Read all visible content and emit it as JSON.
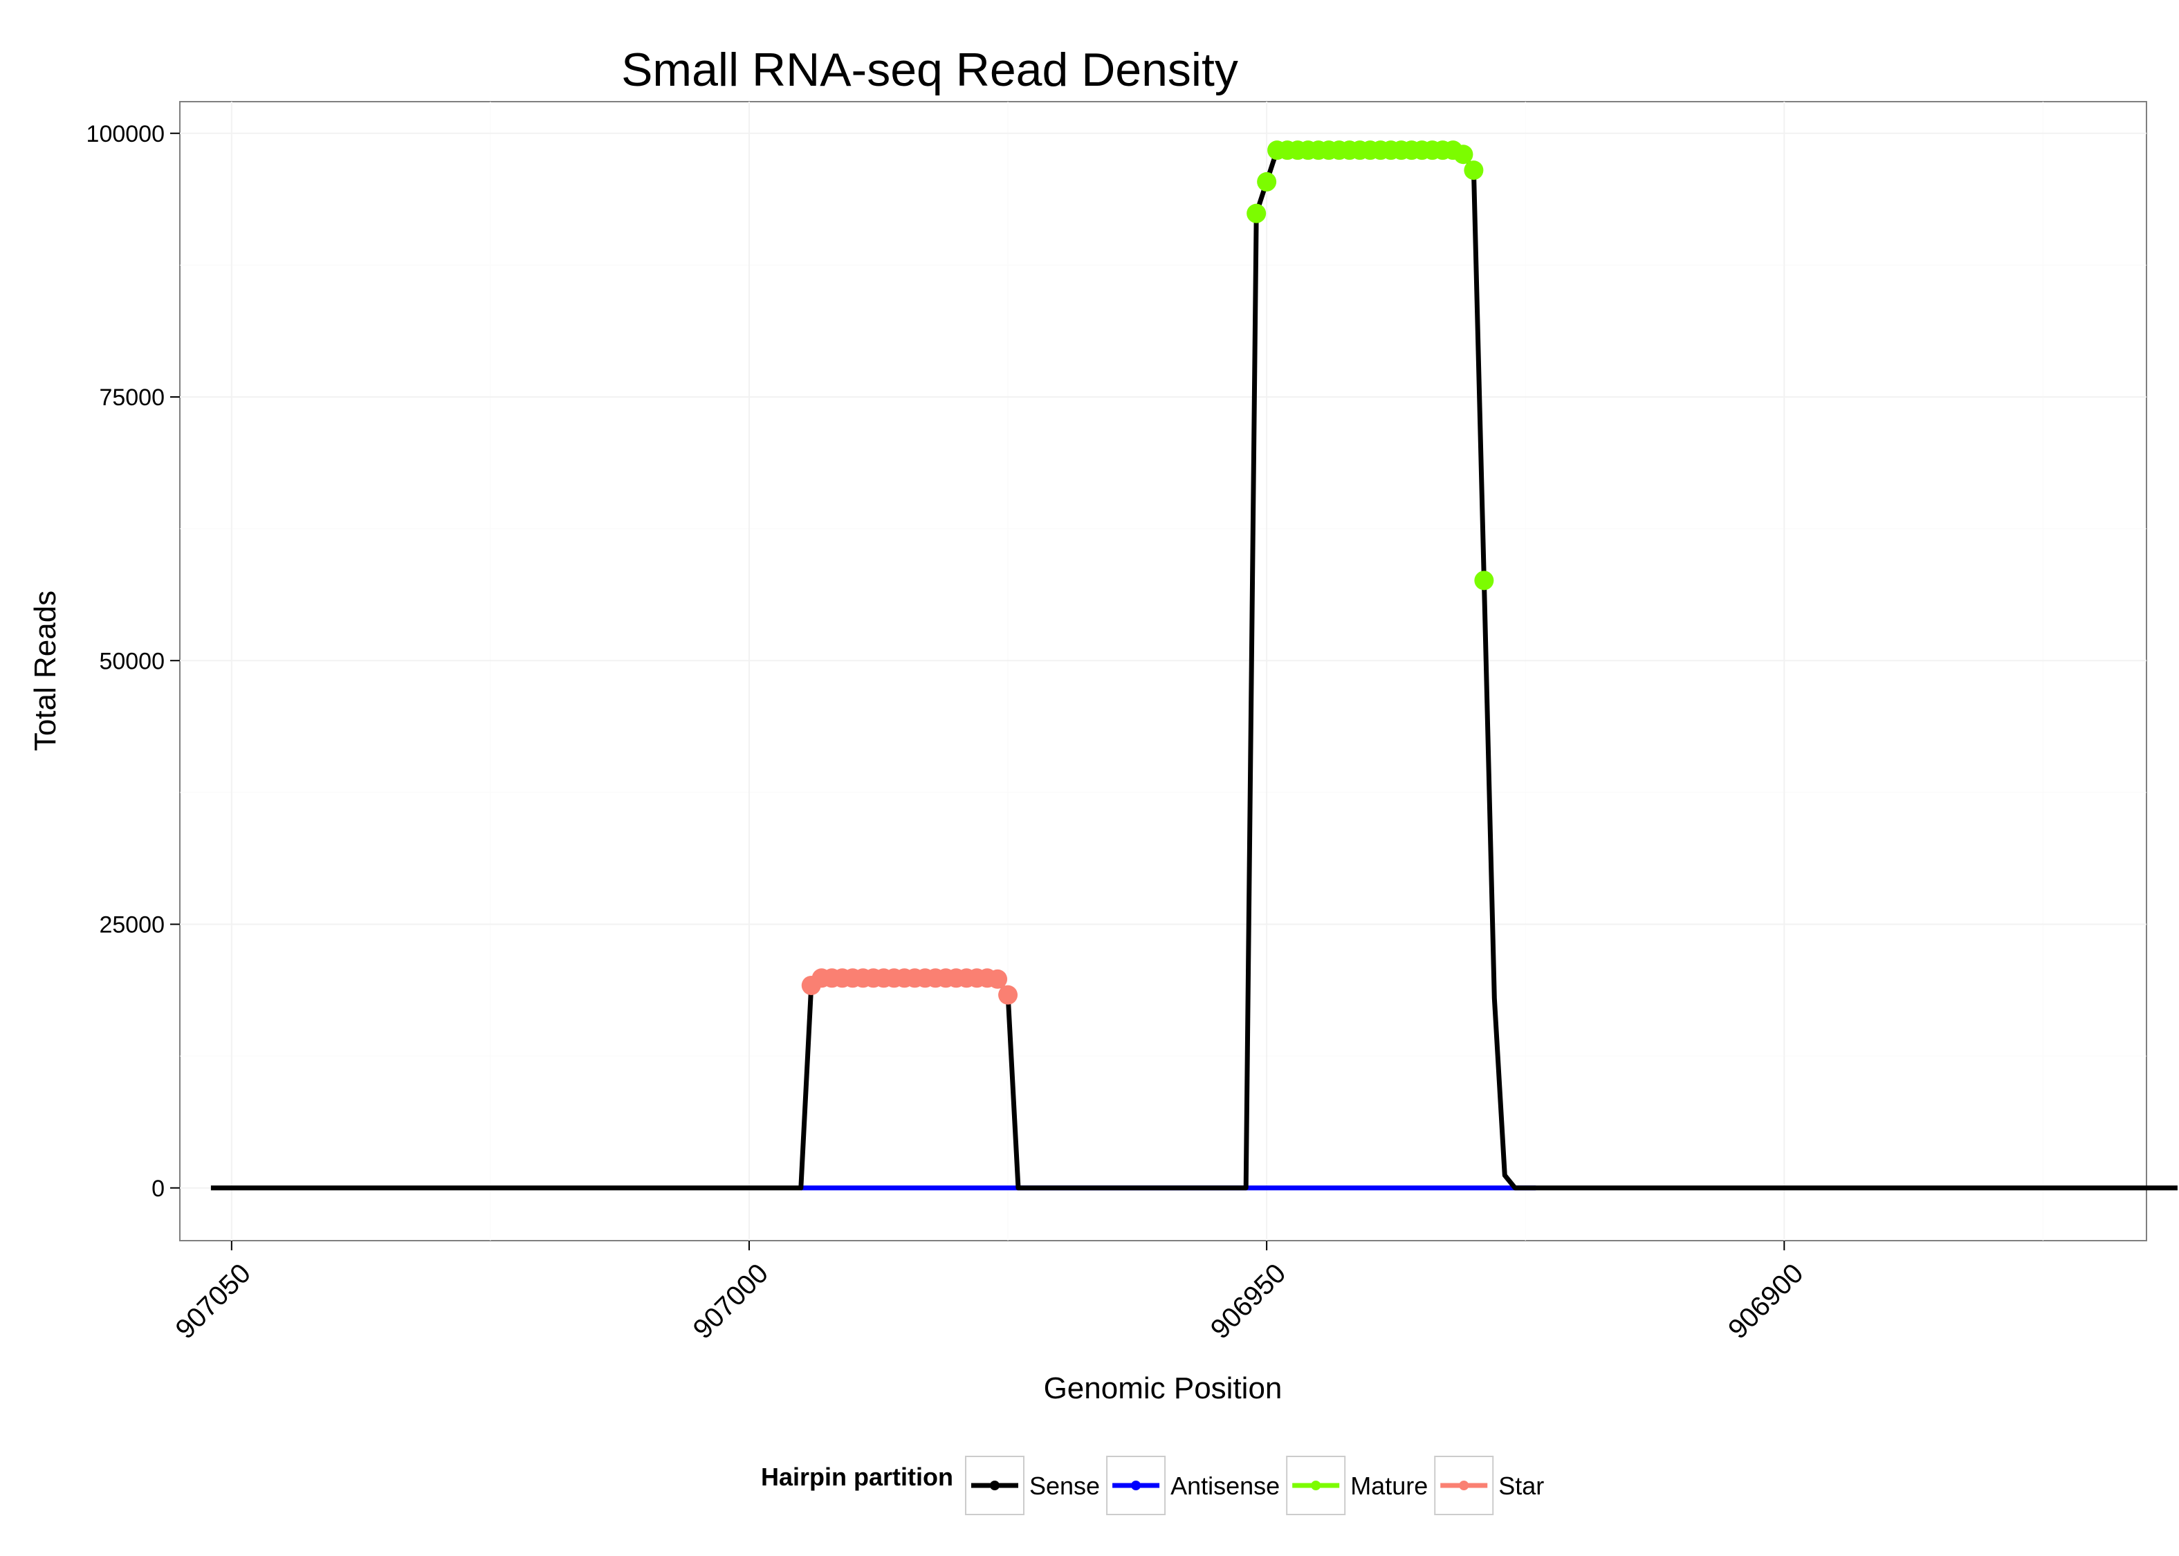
{
  "chart_data": {
    "type": "line",
    "title": "Small RNA-seq Read Density",
    "xlabel": "Genomic Position",
    "ylabel": "Total Reads",
    "x_reversed": true,
    "xlim": [
      907055,
      906865
    ],
    "ylim": [
      -5000,
      103000
    ],
    "x_ticks": [
      907050,
      907000,
      906950,
      906900
    ],
    "x_tick_labels": [
      "907050",
      "907000",
      "906950",
      "906900"
    ],
    "y_ticks": [
      0,
      25000,
      50000,
      75000,
      100000
    ],
    "y_tick_labels": [
      "0",
      "25000",
      "50000",
      "75000",
      "100000"
    ],
    "grid": true,
    "legend": {
      "title": "Hairpin partition",
      "position": "bottom",
      "entries": [
        "Sense",
        "Antisense",
        "Mature",
        "Star"
      ]
    },
    "series": [
      {
        "name": "Sense",
        "color": "#000000",
        "x": [
          907052,
          906995,
          906994,
          906993,
          906992,
          906991,
          906990,
          906989,
          906988,
          906987,
          906986,
          906985,
          906984,
          906983,
          906982,
          906981,
          906980,
          906979,
          906978,
          906977,
          906976,
          906975,
          906974,
          906973,
          906972,
          906952,
          906951,
          906950,
          906949,
          906948,
          906947,
          906946,
          906945,
          906944,
          906943,
          906942,
          906941,
          906940,
          906939,
          906938,
          906937,
          906936,
          906935,
          906934,
          906933,
          906932,
          906931,
          906930,
          906929,
          906928,
          906927,
          906926,
          906925,
          906862
        ],
        "y": [
          0,
          0,
          19200,
          19900,
          19900,
          19900,
          19900,
          19900,
          19900,
          19900,
          19900,
          19900,
          19900,
          19900,
          19900,
          19900,
          19900,
          19900,
          19900,
          19900,
          19800,
          18300,
          0,
          0,
          0,
          0,
          92400,
          95400,
          98400,
          98400,
          98400,
          98400,
          98400,
          98400,
          98400,
          98400,
          98400,
          98400,
          98400,
          98400,
          98400,
          98400,
          98400,
          98400,
          98400,
          98400,
          98000,
          96500,
          57600,
          18000,
          1200,
          0,
          0,
          0
        ]
      },
      {
        "name": "Antisense",
        "color": "#0000ff",
        "x": [
          906995,
          906924
        ],
        "y": [
          0,
          0
        ]
      },
      {
        "name": "Mature",
        "color": "#7cfc00",
        "x": [
          906951,
          906950,
          906949,
          906948,
          906947,
          906946,
          906945,
          906944,
          906943,
          906942,
          906941,
          906940,
          906939,
          906938,
          906937,
          906936,
          906935,
          906934,
          906933,
          906932,
          906931,
          906930,
          906929
        ],
        "y": [
          92400,
          95400,
          98400,
          98400,
          98400,
          98400,
          98400,
          98400,
          98400,
          98400,
          98400,
          98400,
          98400,
          98400,
          98400,
          98400,
          98400,
          98400,
          98400,
          98400,
          98000,
          96500,
          57600
        ]
      },
      {
        "name": "Star",
        "color": "#fa8072",
        "x": [
          906994,
          906993,
          906992,
          906991,
          906990,
          906989,
          906988,
          906987,
          906986,
          906985,
          906984,
          906983,
          906982,
          906981,
          906980,
          906979,
          906978,
          906977,
          906976,
          906975
        ],
        "y": [
          19200,
          19900,
          19900,
          19900,
          19900,
          19900,
          19900,
          19900,
          19900,
          19900,
          19900,
          19900,
          19900,
          19900,
          19900,
          19900,
          19900,
          19900,
          19800,
          18300
        ]
      }
    ]
  }
}
